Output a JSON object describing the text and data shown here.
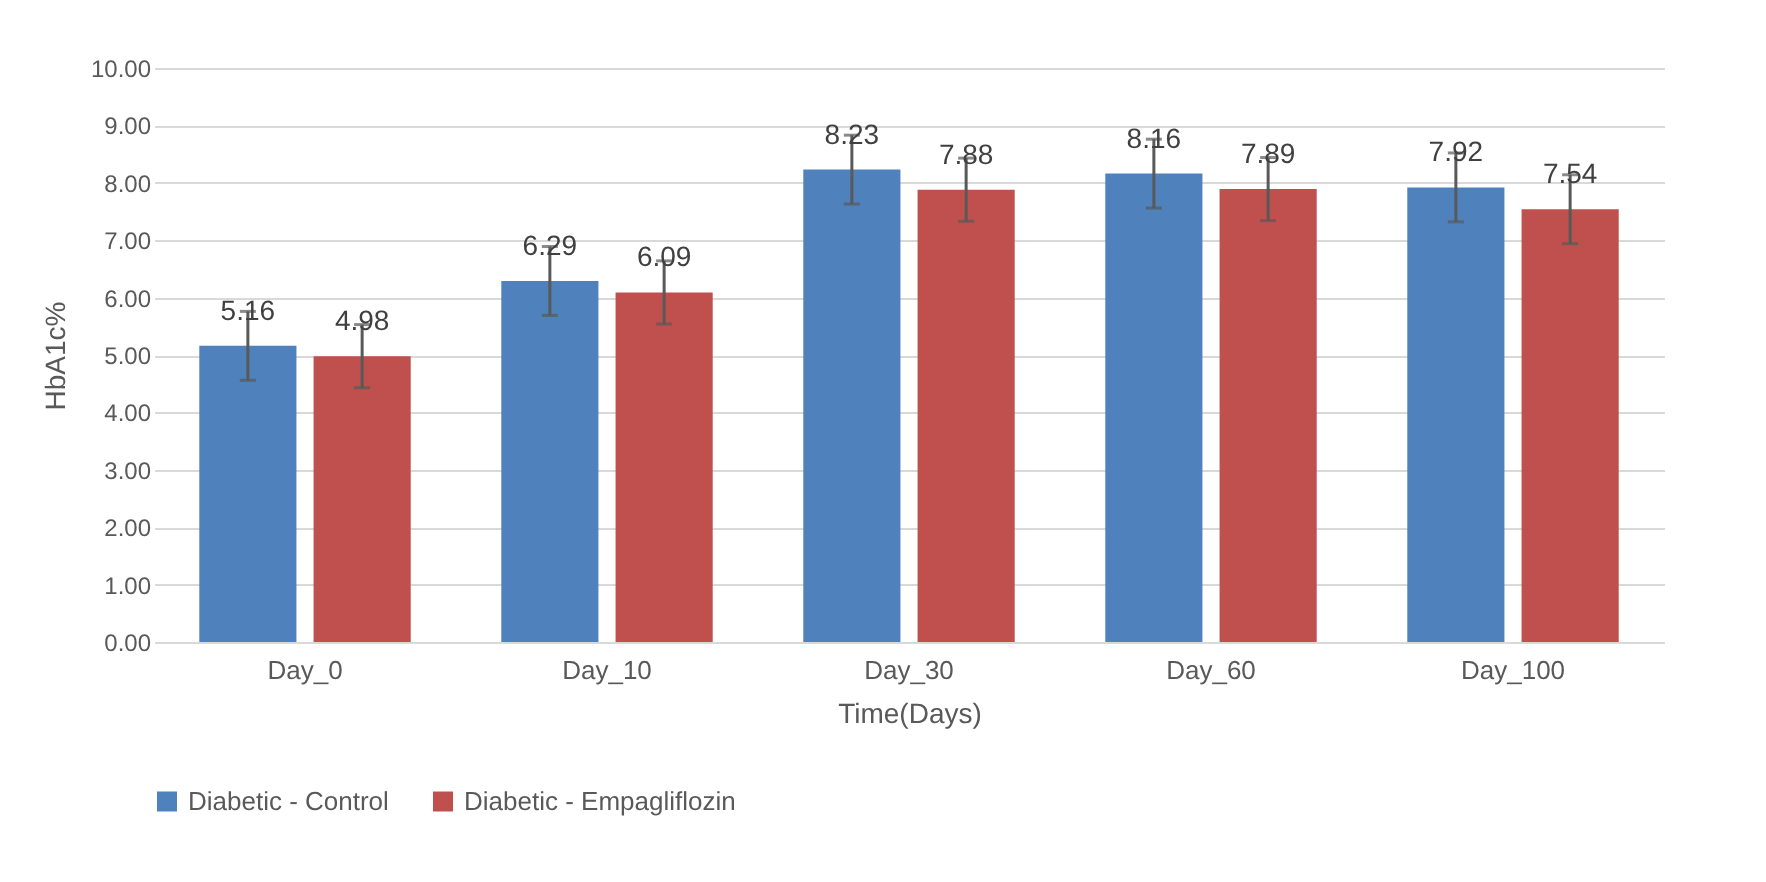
{
  "chart_data": {
    "type": "bar",
    "xlabel": "Time(Days)",
    "ylabel": "HbA1c%",
    "categories": [
      "Day_0",
      "Day_10",
      "Day_30",
      "Day_60",
      "Day_100"
    ],
    "series": [
      {
        "name": "Diabetic - Control",
        "color": "#4f81bd",
        "values": [
          5.16,
          6.29,
          8.23,
          8.16,
          7.92
        ],
        "errors": [
          0.6,
          0.6,
          0.6,
          0.6,
          0.6
        ]
      },
      {
        "name": "Diabetic - Empagliflozin",
        "color": "#c0504d",
        "values": [
          4.98,
          6.09,
          7.88,
          7.89,
          7.54
        ],
        "errors": [
          0.55,
          0.55,
          0.55,
          0.55,
          0.6
        ]
      }
    ],
    "ylim": [
      0,
      10
    ],
    "yticks": [
      {
        "value": 0,
        "label": "0.00"
      },
      {
        "value": 1,
        "label": "1.00"
      },
      {
        "value": 2,
        "label": "2.00"
      },
      {
        "value": 3,
        "label": "3.00"
      },
      {
        "value": 4,
        "label": "4.00"
      },
      {
        "value": 5,
        "label": "5.00"
      },
      {
        "value": 6,
        "label": "6.00"
      },
      {
        "value": 7,
        "label": "7.00"
      },
      {
        "value": 8,
        "label": "8.00"
      },
      {
        "value": 9,
        "label": "9.00"
      },
      {
        "value": 10,
        "label": "10.00"
      }
    ],
    "grid": "y",
    "legend": "bottom",
    "data_labels": true
  }
}
